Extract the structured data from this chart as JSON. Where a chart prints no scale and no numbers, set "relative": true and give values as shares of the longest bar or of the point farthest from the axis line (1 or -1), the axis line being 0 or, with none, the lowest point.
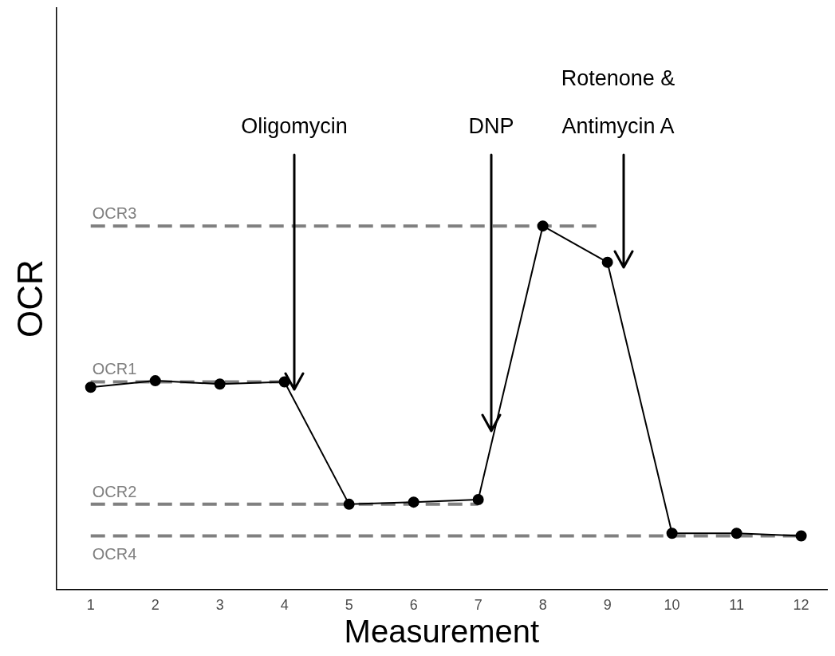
{
  "chart_data": {
    "type": "line",
    "relative": true,
    "xlabel": "Measurement",
    "ylabel": "OCR",
    "xlim": [
      0.47,
      12.4
    ],
    "xticks": [
      1,
      2,
      3,
      4,
      5,
      6,
      7,
      8,
      9,
      10,
      11,
      12
    ],
    "grid": false,
    "legend": false,
    "tick_labels": "x",
    "series": [
      {
        "name": "OCR3",
        "color": "#808080",
        "line_style": "dashed",
        "marker": "none",
        "x": [
          1,
          8.88
        ],
        "values": [
          1,
          1
        ]
      },
      {
        "name": "OCR1",
        "color": "#808080",
        "line_style": "dashed",
        "marker": "none",
        "x": [
          1,
          4
        ],
        "values": [
          0.571,
          0.571
        ]
      },
      {
        "name": "OCR2",
        "color": "#808080",
        "line_style": "dashed",
        "marker": "none",
        "x": [
          1,
          7
        ],
        "values": [
          0.234,
          0.234
        ]
      },
      {
        "name": "OCR4",
        "color": "#808080",
        "line_style": "dashed",
        "marker": "none",
        "x": [
          1,
          12
        ],
        "values": [
          0.147,
          0.147
        ]
      },
      {
        "color": "#000000",
        "line_style": "solid",
        "marker": "circle",
        "x": [
          1,
          2,
          3,
          4,
          5,
          6,
          7,
          8,
          9,
          10,
          11,
          12
        ],
        "values": [
          0.556,
          0.574,
          0.565,
          0.571,
          0.234,
          0.24,
          0.247,
          1,
          0.9,
          0.154,
          0.154,
          0.147
        ]
      }
    ],
    "annotations": [
      "Oligomycin",
      "DNP",
      "Rotenone & Antimycin A"
    ]
  }
}
